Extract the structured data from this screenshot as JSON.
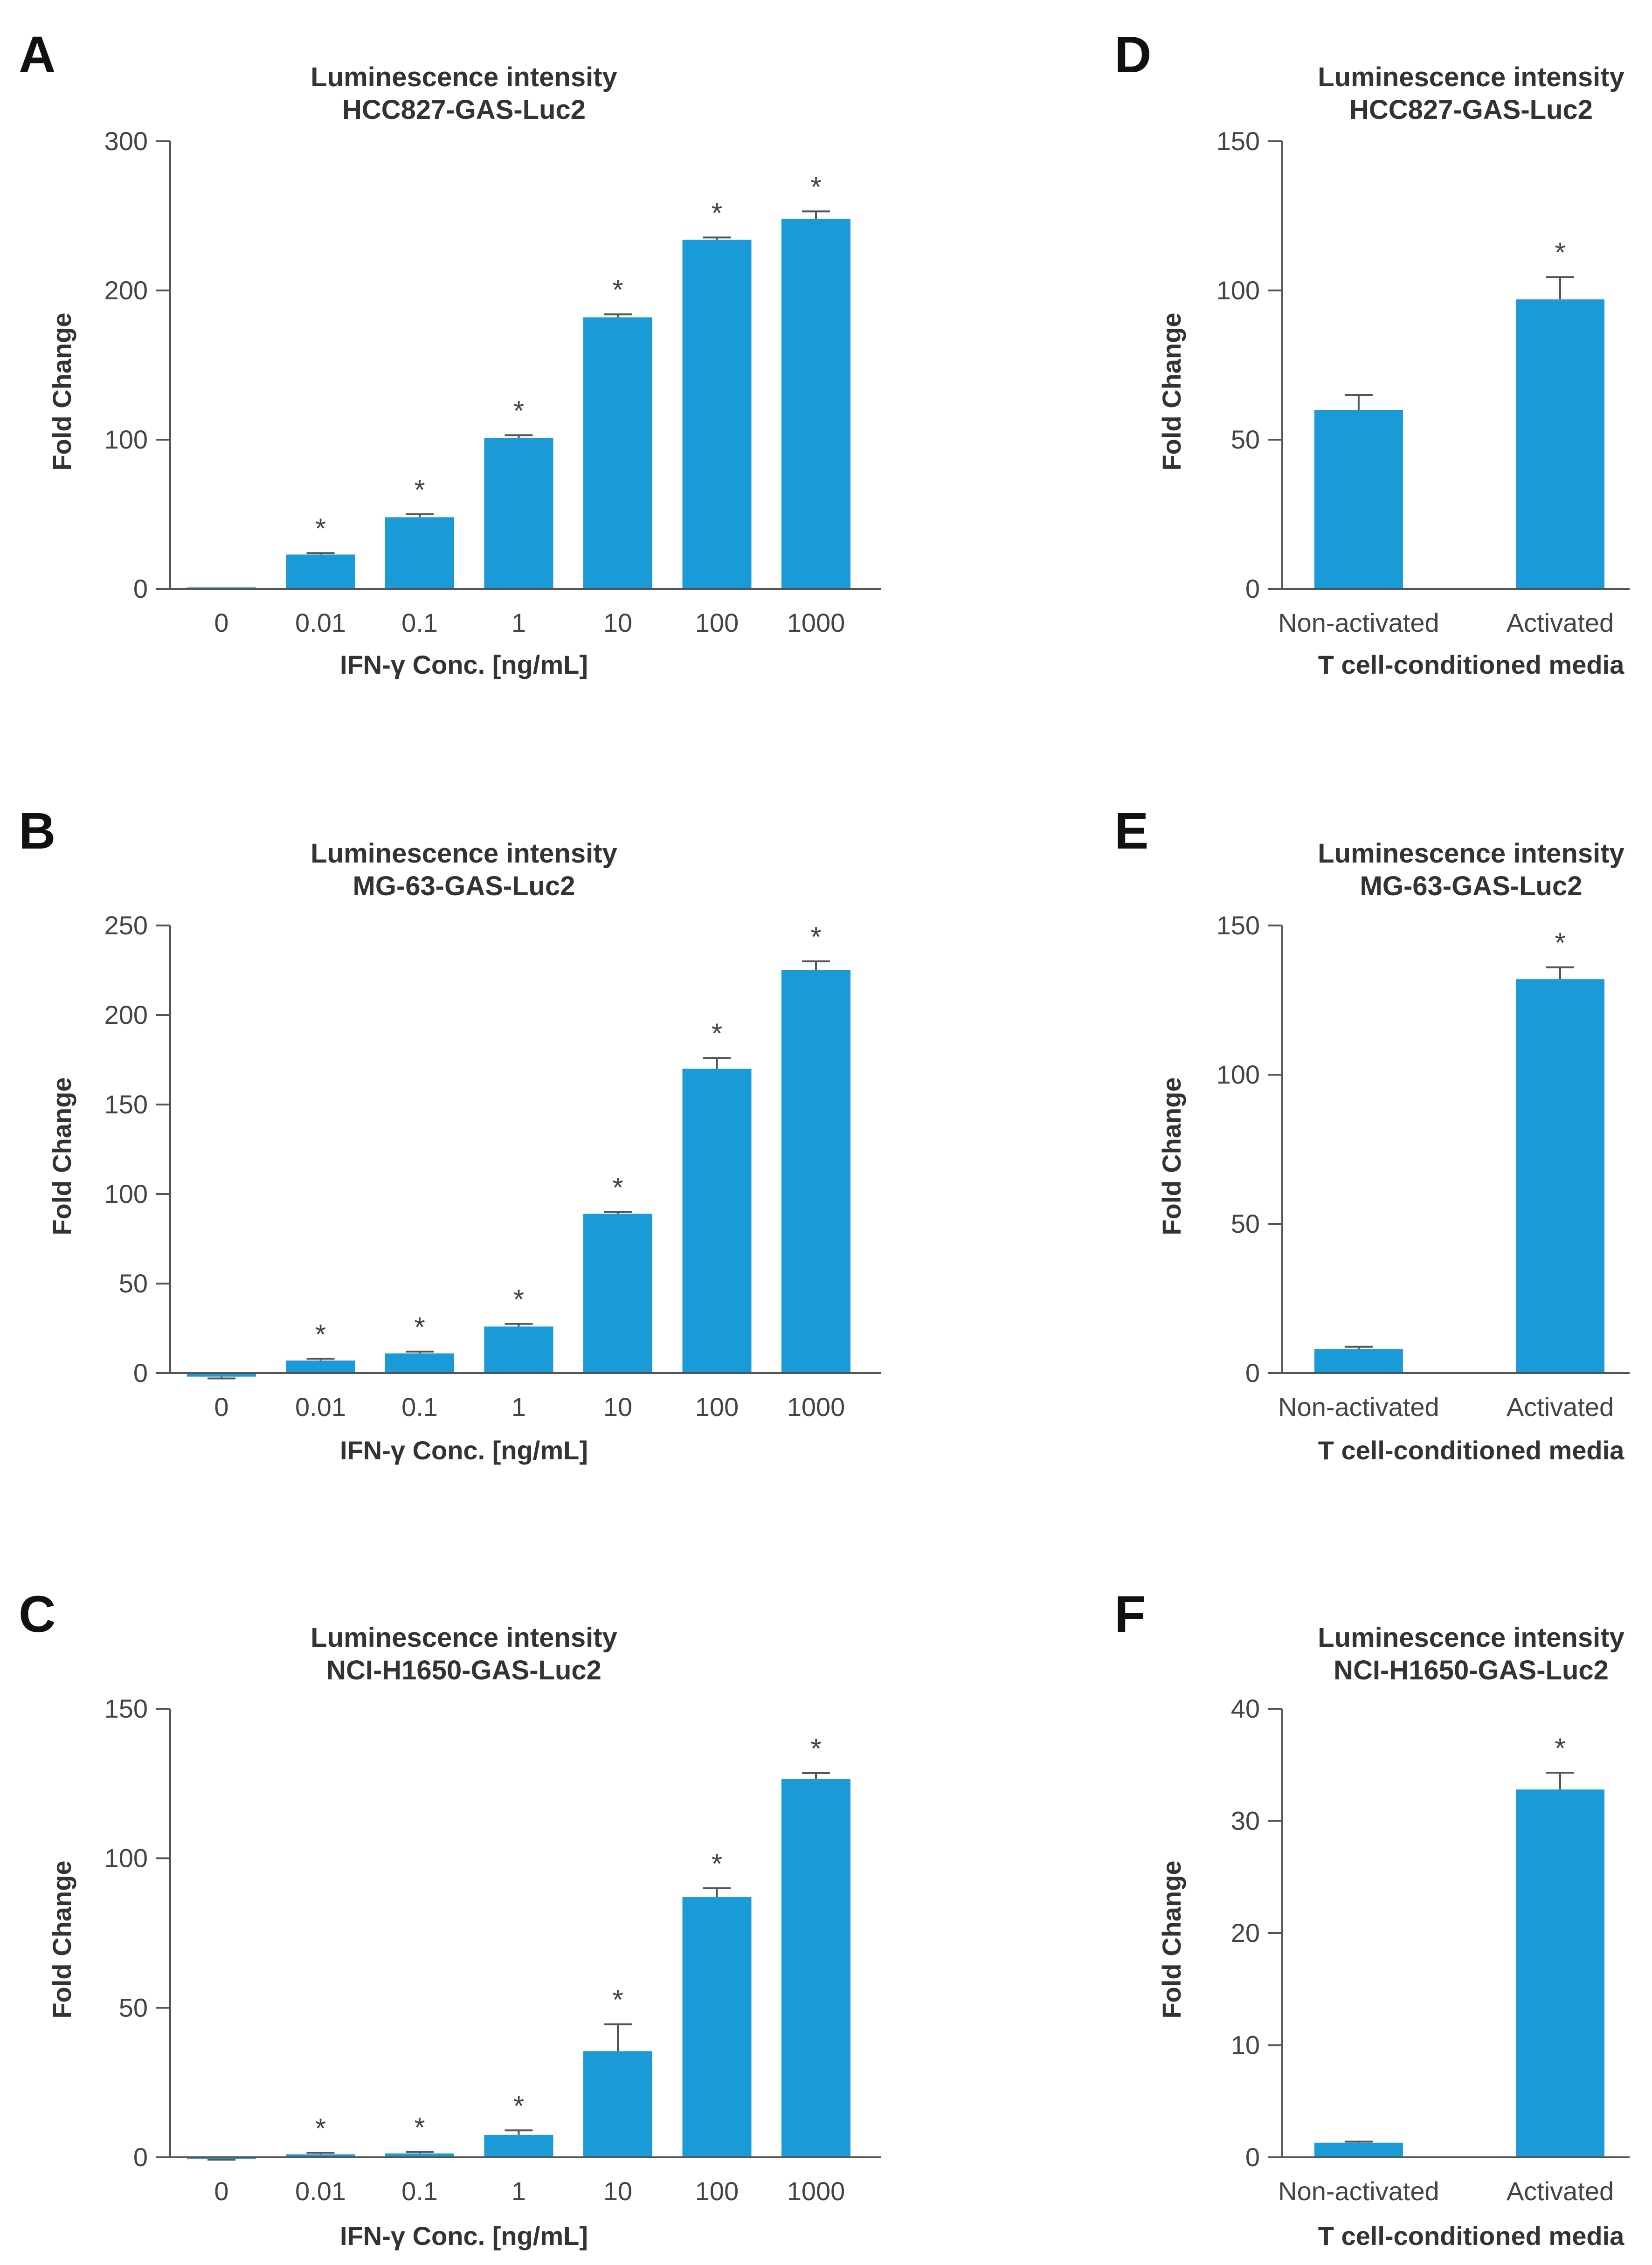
{
  "colors": {
    "bar": "#1a9ad6",
    "axis": "#555555",
    "text": "#222222",
    "tick_text": "#444444"
  },
  "chart_data": [
    {
      "panel": "A",
      "type": "bar",
      "title": [
        "Luminescence intensity",
        "HCC827-GAS-Luc2"
      ],
      "xlabel": "IFN-γ  Conc. [ng/mL]",
      "ylabel": "Fold Change",
      "categories": [
        "0",
        "0.01",
        "0.1",
        "1",
        "10",
        "100",
        "1000"
      ],
      "values": [
        1,
        23,
        48,
        101,
        182,
        234,
        248
      ],
      "errors": [
        0,
        1,
        2,
        2,
        2,
        1.5,
        5
      ],
      "significant": [
        false,
        true,
        true,
        true,
        true,
        true,
        true
      ],
      "ylim": [
        0,
        300
      ],
      "yticks": [
        0,
        100,
        200,
        300
      ]
    },
    {
      "panel": "B",
      "type": "bar",
      "title": [
        "Luminescence intensity",
        "MG-63-GAS-Luc2"
      ],
      "xlabel": "IFN-γ Conc. [ng/mL]",
      "ylabel": "Fold Change",
      "categories": [
        "0",
        "0.01",
        "0.1",
        "1",
        "10",
        "100",
        "1000"
      ],
      "values": [
        -2,
        7,
        11,
        26,
        89,
        170,
        225
      ],
      "errors": [
        1,
        1,
        1,
        1.5,
        1,
        6,
        5
      ],
      "significant": [
        false,
        true,
        true,
        true,
        true,
        true,
        true
      ],
      "ylim": [
        0,
        250
      ],
      "yticks": [
        0,
        50,
        100,
        150,
        200,
        250
      ]
    },
    {
      "panel": "C",
      "type": "bar",
      "title": [
        "Luminescence intensity",
        "NCI-H1650-GAS-Luc2"
      ],
      "xlabel": "IFN-γ Conc. [ng/mL]",
      "ylabel": "Fold Change",
      "categories": [
        "0",
        "0.01",
        "0.1",
        "1",
        "10",
        "100",
        "1000"
      ],
      "values": [
        -0.5,
        1,
        1.3,
        7.5,
        35.5,
        87,
        126.5
      ],
      "errors": [
        0.3,
        0.5,
        0.5,
        1.5,
        9,
        3,
        2
      ],
      "significant": [
        false,
        true,
        true,
        true,
        true,
        true,
        true
      ],
      "ylim": [
        0,
        150
      ],
      "yticks": [
        0,
        50,
        100,
        150
      ]
    },
    {
      "panel": "D",
      "type": "bar",
      "title": [
        "Luminescence intensity",
        "HCC827-GAS-Luc2"
      ],
      "xlabel": "T cell-conditioned media",
      "ylabel": "Fold Change",
      "categories": [
        "Non-activated",
        "Activated"
      ],
      "values": [
        60,
        97
      ],
      "errors": [
        5,
        7.5
      ],
      "significant": [
        false,
        true
      ],
      "ylim": [
        0,
        150
      ],
      "yticks": [
        0,
        50,
        100,
        150
      ]
    },
    {
      "panel": "E",
      "type": "bar",
      "title": [
        "Luminescence intensity",
        "MG-63-GAS-Luc2"
      ],
      "xlabel": "T cell-conditioned media",
      "ylabel": "Fold Change",
      "categories": [
        "Non-activated",
        "Activated"
      ],
      "values": [
        8,
        132
      ],
      "errors": [
        0.8,
        4
      ],
      "significant": [
        false,
        true
      ],
      "ylim": [
        0,
        150
      ],
      "yticks": [
        0,
        50,
        100,
        150
      ]
    },
    {
      "panel": "F",
      "type": "bar",
      "title": [
        "Luminescence intensity",
        "NCI-H1650-GAS-Luc2"
      ],
      "xlabel": "T cell-conditioned media",
      "ylabel": "Fold Change",
      "categories": [
        "Non-activated",
        "Activated"
      ],
      "values": [
        1.3,
        32.8
      ],
      "errors": [
        0.1,
        1.5
      ],
      "significant": [
        false,
        true
      ],
      "ylim": [
        0,
        40
      ],
      "yticks": [
        0,
        10,
        20,
        30,
        40
      ]
    }
  ]
}
